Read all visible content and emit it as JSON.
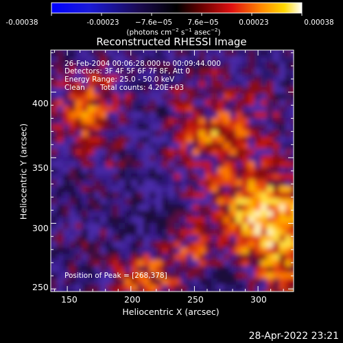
{
  "colorbar": {
    "tick_labels": [
      "-0.00038",
      "-0.00023",
      "−7.6e−05",
      "7.6e−05",
      "0.00023",
      "0.00038"
    ],
    "unit_prefix": "(photons cm",
    "unit_exp1": "−2",
    "unit_mid": " s",
    "unit_exp2": "−1",
    "unit_mid2": " asec",
    "unit_exp3": "−2",
    "unit_suffix": ")",
    "colormap": "blue-black-red-yellow-white"
  },
  "plot": {
    "title": "Reconstructed RHESSI Image",
    "annotation_line1": "26-Feb-2004 00:06:28.000 to 00:09:44.000",
    "annotation_line2": "Detectors: 3F 4F 5F 6F 7F 8F, Att 0",
    "annotation_line3": "Energy Range: 25.0 - 50.0 keV",
    "annotation_line4_a": "Clean",
    "annotation_line4_b": "Total counts: 4.20E+03",
    "peak_label": "Position of Peak = [268,378]",
    "xlabel": "Heliocentric X (arcsec)",
    "ylabel": "Heliocentric Y (arcsec)",
    "x_ticks": [
      "150",
      "200",
      "250",
      "300"
    ],
    "y_ticks": [
      "250",
      "300",
      "350",
      "400"
    ]
  },
  "chart_data": {
    "type": "heatmap",
    "title": "Reconstructed RHESSI Image",
    "xlabel": "Heliocentric X (arcsec)",
    "ylabel": "Heliocentric Y (arcsec)",
    "xlim": [
      137,
      328
    ],
    "ylim": [
      248,
      432
    ],
    "x_ticks": [
      150,
      200,
      250,
      300
    ],
    "y_ticks": [
      250,
      300,
      350,
      400
    ],
    "colorbar_range": [
      -0.00038,
      0.00038
    ],
    "peak_position": [
      268,
      378
    ]
  },
  "footer": {
    "timestamp": "28-Apr-2022 23:21"
  }
}
